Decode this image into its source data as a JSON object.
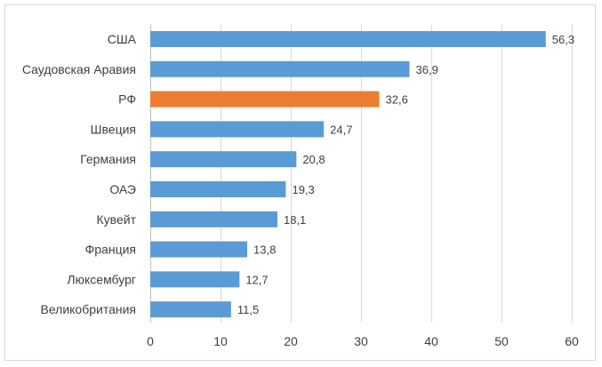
{
  "chart_data": {
    "type": "bar",
    "orientation": "horizontal",
    "categories": [
      "США",
      "Саудовская Аравия",
      "РФ",
      "Швеция",
      "Германия",
      "ОАЭ",
      "Кувейт",
      "Франция",
      "Люксембург",
      "Великобритания"
    ],
    "values": [
      56.3,
      36.9,
      32.6,
      24.7,
      20.8,
      19.3,
      18.1,
      13.8,
      12.7,
      11.5
    ],
    "value_labels": [
      "56,3",
      "36,9",
      "32,6",
      "24,7",
      "20,8",
      "19,3",
      "18,1",
      "13,8",
      "12,7",
      "11,5"
    ],
    "xlim": [
      0,
      60
    ],
    "x_ticks": [
      0,
      10,
      20,
      30,
      40,
      50,
      60
    ],
    "grid": "vertical",
    "legend": "none",
    "title": "",
    "xlabel": "",
    "ylabel": "",
    "colors": {
      "default_bar": "#5b9bd5",
      "highlight_bar": "#ed7d31"
    },
    "highlight_category": "РФ"
  }
}
